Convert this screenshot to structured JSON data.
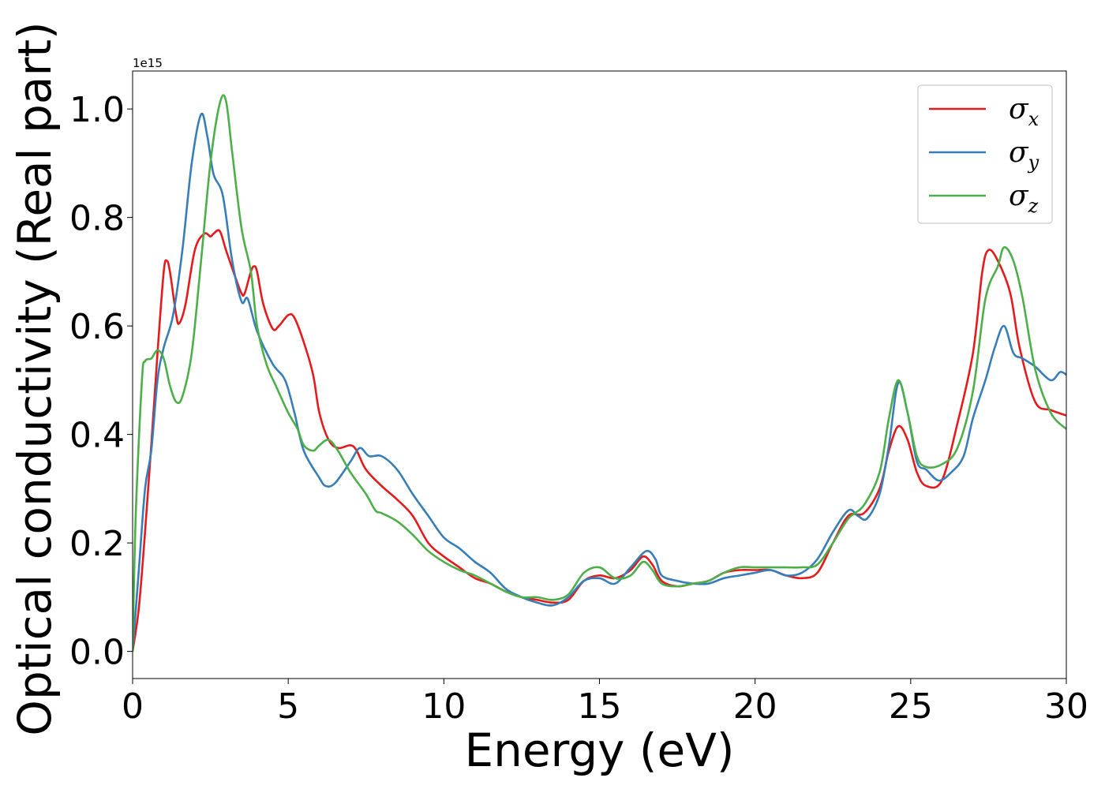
{
  "chart_data": {
    "type": "line",
    "title": "",
    "xlabel": "Energy (eV)",
    "ylabel": "Optical conductivity (Real part)",
    "y_offset_text": "1e15",
    "xlim": [
      0,
      30
    ],
    "ylim": [
      -0.05,
      1.07
    ],
    "x_ticks": [
      0,
      5,
      10,
      15,
      20,
      25,
      30
    ],
    "x_tick_labels": [
      "0",
      "5",
      "10",
      "15",
      "20",
      "25",
      "30"
    ],
    "y_ticks": [
      0.0,
      0.2,
      0.4,
      0.6,
      0.8,
      1.0
    ],
    "y_tick_labels": [
      "0.0",
      "0.2",
      "0.4",
      "0.6",
      "0.8",
      "1.0"
    ],
    "grid": false,
    "legend_position": "top-right",
    "series": [
      {
        "name": "σx",
        "symbol": "σ",
        "subscript": "x",
        "color": "#e41a1c",
        "points": [
          [
            0,
            0
          ],
          [
            0.2,
            0.08
          ],
          [
            0.4,
            0.22
          ],
          [
            0.6,
            0.38
          ],
          [
            0.8,
            0.55
          ],
          [
            1.0,
            0.7
          ],
          [
            1.1,
            0.72
          ],
          [
            1.2,
            0.7
          ],
          [
            1.4,
            0.62
          ],
          [
            1.5,
            0.605
          ],
          [
            1.7,
            0.64
          ],
          [
            2.0,
            0.74
          ],
          [
            2.3,
            0.77
          ],
          [
            2.5,
            0.765
          ],
          [
            2.6,
            0.77
          ],
          [
            2.8,
            0.775
          ],
          [
            3.0,
            0.74
          ],
          [
            3.3,
            0.69
          ],
          [
            3.5,
            0.66
          ],
          [
            3.6,
            0.66
          ],
          [
            3.8,
            0.7
          ],
          [
            3.9,
            0.71
          ],
          [
            4.0,
            0.7
          ],
          [
            4.2,
            0.64
          ],
          [
            4.5,
            0.595
          ],
          [
            4.7,
            0.6
          ],
          [
            5.0,
            0.62
          ],
          [
            5.2,
            0.615
          ],
          [
            5.5,
            0.57
          ],
          [
            5.8,
            0.51
          ],
          [
            6.0,
            0.44
          ],
          [
            6.3,
            0.39
          ],
          [
            6.6,
            0.375
          ],
          [
            7.0,
            0.38
          ],
          [
            7.2,
            0.37
          ],
          [
            7.5,
            0.335
          ],
          [
            8.0,
            0.305
          ],
          [
            8.5,
            0.28
          ],
          [
            9.0,
            0.25
          ],
          [
            9.5,
            0.2
          ],
          [
            10.0,
            0.175
          ],
          [
            10.5,
            0.155
          ],
          [
            11.0,
            0.135
          ],
          [
            11.5,
            0.125
          ],
          [
            12.0,
            0.11
          ],
          [
            12.5,
            0.1
          ],
          [
            13.0,
            0.095
          ],
          [
            13.5,
            0.09
          ],
          [
            14.0,
            0.095
          ],
          [
            14.5,
            0.13
          ],
          [
            15.0,
            0.14
          ],
          [
            15.5,
            0.135
          ],
          [
            16.0,
            0.15
          ],
          [
            16.4,
            0.175
          ],
          [
            16.7,
            0.16
          ],
          [
            17.0,
            0.13
          ],
          [
            17.5,
            0.12
          ],
          [
            18.0,
            0.125
          ],
          [
            18.5,
            0.13
          ],
          [
            19.0,
            0.145
          ],
          [
            19.5,
            0.15
          ],
          [
            20.0,
            0.15
          ],
          [
            20.5,
            0.15
          ],
          [
            21.0,
            0.14
          ],
          [
            21.5,
            0.135
          ],
          [
            22.0,
            0.145
          ],
          [
            22.5,
            0.2
          ],
          [
            23.0,
            0.25
          ],
          [
            23.5,
            0.255
          ],
          [
            24.0,
            0.3
          ],
          [
            24.3,
            0.37
          ],
          [
            24.6,
            0.415
          ],
          [
            24.9,
            0.39
          ],
          [
            25.2,
            0.33
          ],
          [
            25.5,
            0.305
          ],
          [
            26.0,
            0.315
          ],
          [
            26.5,
            0.42
          ],
          [
            27.0,
            0.55
          ],
          [
            27.3,
            0.7
          ],
          [
            27.5,
            0.74
          ],
          [
            27.8,
            0.72
          ],
          [
            28.2,
            0.66
          ],
          [
            28.5,
            0.56
          ],
          [
            29.0,
            0.46
          ],
          [
            29.5,
            0.445
          ],
          [
            30.0,
            0.435
          ]
        ]
      },
      {
        "name": "σy",
        "symbol": "σ",
        "subscript": "y",
        "color": "#377eb8",
        "points": [
          [
            0,
            0
          ],
          [
            0.2,
            0.15
          ],
          [
            0.4,
            0.3
          ],
          [
            0.6,
            0.37
          ],
          [
            0.8,
            0.5
          ],
          [
            1.0,
            0.56
          ],
          [
            1.3,
            0.62
          ],
          [
            1.6,
            0.74
          ],
          [
            1.9,
            0.9
          ],
          [
            2.2,
            0.99
          ],
          [
            2.4,
            0.95
          ],
          [
            2.6,
            0.88
          ],
          [
            2.9,
            0.84
          ],
          [
            3.2,
            0.72
          ],
          [
            3.5,
            0.645
          ],
          [
            3.7,
            0.65
          ],
          [
            4.0,
            0.59
          ],
          [
            4.5,
            0.53
          ],
          [
            4.9,
            0.5
          ],
          [
            5.2,
            0.44
          ],
          [
            5.5,
            0.37
          ],
          [
            6.0,
            0.32
          ],
          [
            6.2,
            0.305
          ],
          [
            6.5,
            0.31
          ],
          [
            7.0,
            0.35
          ],
          [
            7.3,
            0.375
          ],
          [
            7.6,
            0.36
          ],
          [
            8.0,
            0.36
          ],
          [
            8.5,
            0.335
          ],
          [
            9.0,
            0.29
          ],
          [
            9.5,
            0.25
          ],
          [
            10.0,
            0.21
          ],
          [
            10.5,
            0.19
          ],
          [
            11.0,
            0.165
          ],
          [
            11.5,
            0.145
          ],
          [
            12.0,
            0.115
          ],
          [
            12.5,
            0.1
          ],
          [
            13.0,
            0.09
          ],
          [
            13.5,
            0.085
          ],
          [
            14.0,
            0.1
          ],
          [
            14.5,
            0.13
          ],
          [
            15.0,
            0.135
          ],
          [
            15.5,
            0.125
          ],
          [
            16.0,
            0.155
          ],
          [
            16.5,
            0.185
          ],
          [
            16.8,
            0.17
          ],
          [
            17.0,
            0.14
          ],
          [
            17.5,
            0.13
          ],
          [
            18.0,
            0.125
          ],
          [
            18.5,
            0.125
          ],
          [
            19.0,
            0.135
          ],
          [
            19.5,
            0.14
          ],
          [
            20.0,
            0.145
          ],
          [
            20.5,
            0.15
          ],
          [
            21.0,
            0.14
          ],
          [
            21.5,
            0.145
          ],
          [
            22.0,
            0.17
          ],
          [
            22.5,
            0.22
          ],
          [
            23.0,
            0.26
          ],
          [
            23.3,
            0.25
          ],
          [
            23.6,
            0.245
          ],
          [
            24.0,
            0.29
          ],
          [
            24.3,
            0.38
          ],
          [
            24.6,
            0.495
          ],
          [
            24.9,
            0.44
          ],
          [
            25.2,
            0.35
          ],
          [
            25.5,
            0.335
          ],
          [
            25.9,
            0.315
          ],
          [
            26.3,
            0.33
          ],
          [
            26.7,
            0.36
          ],
          [
            27.0,
            0.43
          ],
          [
            27.4,
            0.5
          ],
          [
            27.7,
            0.56
          ],
          [
            28.0,
            0.6
          ],
          [
            28.3,
            0.55
          ],
          [
            28.6,
            0.54
          ],
          [
            29.0,
            0.525
          ],
          [
            29.5,
            0.5
          ],
          [
            29.8,
            0.515
          ],
          [
            30.0,
            0.51
          ]
        ]
      },
      {
        "name": "σz",
        "symbol": "σ",
        "subscript": "z",
        "color": "#4daf4a",
        "points": [
          [
            0,
            0
          ],
          [
            0.1,
            0.25
          ],
          [
            0.3,
            0.5
          ],
          [
            0.4,
            0.535
          ],
          [
            0.6,
            0.54
          ],
          [
            0.8,
            0.555
          ],
          [
            1.0,
            0.54
          ],
          [
            1.2,
            0.49
          ],
          [
            1.4,
            0.46
          ],
          [
            1.6,
            0.47
          ],
          [
            1.9,
            0.55
          ],
          [
            2.2,
            0.72
          ],
          [
            2.5,
            0.9
          ],
          [
            2.8,
            1.01
          ],
          [
            3.0,
            1.015
          ],
          [
            3.2,
            0.92
          ],
          [
            3.5,
            0.78
          ],
          [
            3.8,
            0.7
          ],
          [
            4.0,
            0.6
          ],
          [
            4.3,
            0.53
          ],
          [
            4.6,
            0.49
          ],
          [
            5.0,
            0.44
          ],
          [
            5.3,
            0.41
          ],
          [
            5.5,
            0.38
          ],
          [
            5.8,
            0.37
          ],
          [
            6.0,
            0.38
          ],
          [
            6.3,
            0.39
          ],
          [
            6.6,
            0.37
          ],
          [
            7.0,
            0.33
          ],
          [
            7.5,
            0.29
          ],
          [
            7.8,
            0.26
          ],
          [
            8.0,
            0.255
          ],
          [
            8.5,
            0.24
          ],
          [
            9.0,
            0.215
          ],
          [
            9.5,
            0.185
          ],
          [
            10.0,
            0.165
          ],
          [
            10.5,
            0.15
          ],
          [
            11.0,
            0.14
          ],
          [
            11.5,
            0.125
          ],
          [
            12.0,
            0.11
          ],
          [
            12.5,
            0.1
          ],
          [
            13.0,
            0.1
          ],
          [
            13.5,
            0.095
          ],
          [
            14.0,
            0.105
          ],
          [
            14.5,
            0.145
          ],
          [
            15.0,
            0.155
          ],
          [
            15.5,
            0.135
          ],
          [
            16.0,
            0.14
          ],
          [
            16.4,
            0.165
          ],
          [
            16.7,
            0.15
          ],
          [
            17.0,
            0.125
          ],
          [
            17.5,
            0.12
          ],
          [
            18.0,
            0.125
          ],
          [
            18.5,
            0.13
          ],
          [
            19.0,
            0.145
          ],
          [
            19.5,
            0.155
          ],
          [
            20.0,
            0.155
          ],
          [
            20.5,
            0.155
          ],
          [
            21.0,
            0.155
          ],
          [
            21.5,
            0.155
          ],
          [
            22.0,
            0.16
          ],
          [
            22.5,
            0.2
          ],
          [
            23.0,
            0.245
          ],
          [
            23.5,
            0.27
          ],
          [
            24.0,
            0.33
          ],
          [
            24.3,
            0.43
          ],
          [
            24.6,
            0.5
          ],
          [
            24.9,
            0.44
          ],
          [
            25.2,
            0.36
          ],
          [
            25.5,
            0.34
          ],
          [
            26.0,
            0.345
          ],
          [
            26.5,
            0.375
          ],
          [
            27.0,
            0.48
          ],
          [
            27.4,
            0.65
          ],
          [
            27.8,
            0.71
          ],
          [
            28.0,
            0.745
          ],
          [
            28.3,
            0.72
          ],
          [
            28.6,
            0.65
          ],
          [
            29.0,
            0.52
          ],
          [
            29.5,
            0.44
          ],
          [
            30.0,
            0.41
          ]
        ]
      }
    ]
  }
}
